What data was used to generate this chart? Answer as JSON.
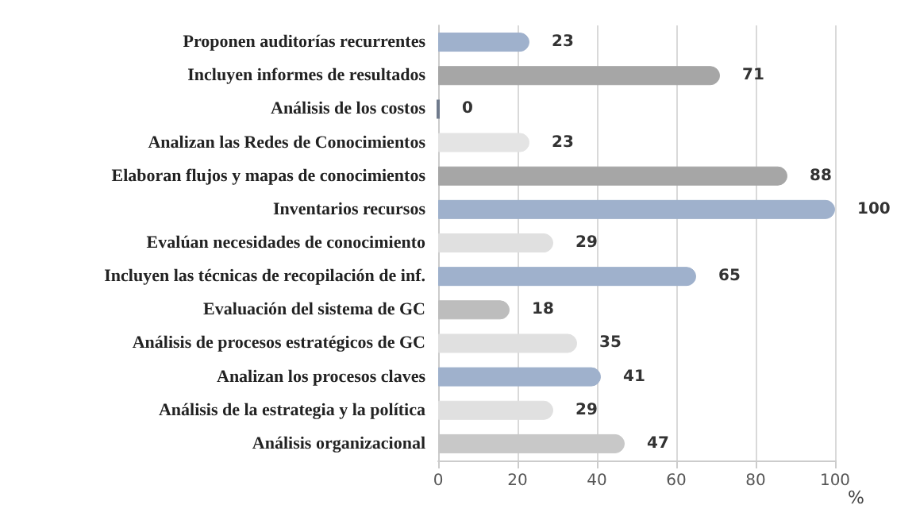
{
  "chart_data": {
    "type": "bar",
    "orientation": "horizontal",
    "xlabel": "%",
    "categories": [
      "Proponen auditorías recurrentes",
      "Incluyen informes de resultados",
      "Análisis de los costos",
      "Analizan las Redes de Conocimientos",
      "Elaboran flujos y mapas de conocimientos",
      "Inventarios recursos",
      "Evalúan necesidades de conocimiento",
      "Incluyen las técnicas de recopilación de inf.",
      "Evaluación del sistema de GC",
      "Análisis de procesos estratégicos de GC",
      "Analizan los procesos claves",
      "Análisis de la estrategia y la política",
      "Análisis organizacional"
    ],
    "values": [
      23,
      71,
      0,
      23,
      88,
      100,
      29,
      65,
      18,
      35,
      41,
      29,
      47
    ],
    "colors": [
      "#9fb1cc",
      "#a6a6a6",
      "#6f7a8c",
      "#e4e4e4",
      "#a6a6a6",
      "#9fb1cc",
      "#e0e0e0",
      "#9fb1cc",
      "#bdbdbd",
      "#e0e0e0",
      "#9fb1cc",
      "#e0e0e0",
      "#c8c8c8"
    ],
    "xlim": [
      0,
      100
    ],
    "xticks": [
      0,
      20,
      40,
      60,
      80,
      100
    ],
    "grid": "x",
    "data_labels": true
  }
}
